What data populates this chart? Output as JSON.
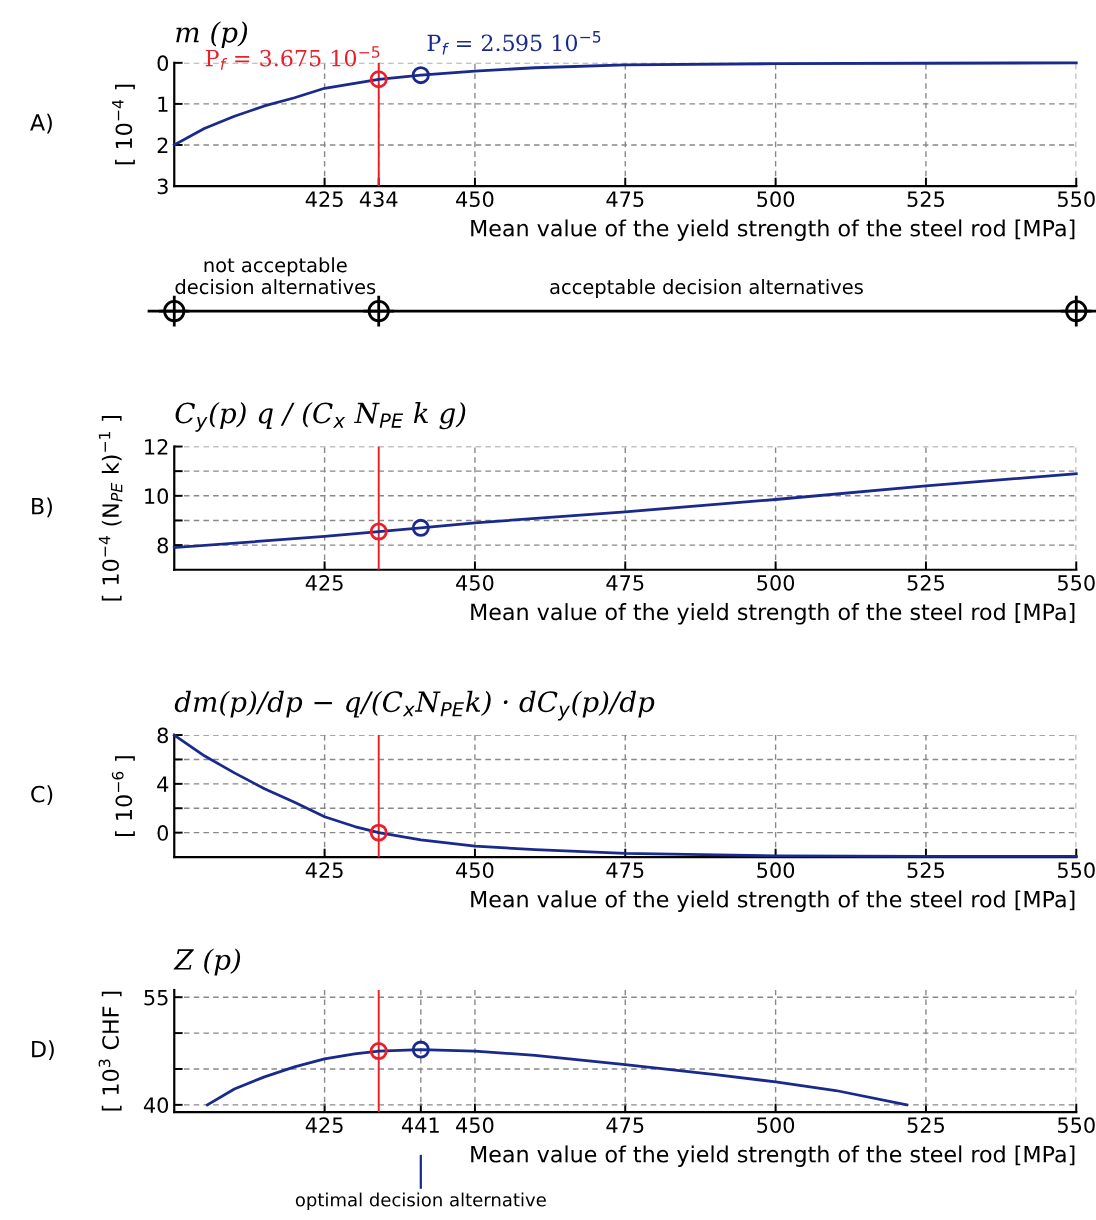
{
  "chart_data": [
    {
      "type": "line",
      "title": "m (p)",
      "ylabel": "[ 10$^{−4}$ ]",
      "xlabel": "Mean value of the yield strength of the steel rod [MPa]",
      "xlim": [
        400,
        550
      ],
      "xticks": [
        425,
        434,
        450,
        475,
        500,
        525,
        550
      ],
      "ylim": [
        3,
        0
      ],
      "yticks": [
        0,
        1,
        2,
        3
      ],
      "grid": true,
      "marker": "none",
      "line_style": "solid",
      "series": [
        {
          "x": [
            400,
            405,
            410,
            415,
            420,
            425,
            430,
            434,
            441,
            450,
            460,
            475,
            500,
            525,
            550
          ],
          "values": [
            2.0,
            1.6,
            1.3,
            1.05,
            0.85,
            0.62,
            0.5,
            0.4,
            0.3,
            0.2,
            0.12,
            0.05,
            0.02,
            0.01,
            0.0
          ],
          "color": "#1a2a8c"
        },
        {
          "type": "scatter",
          "marker": "circle",
          "x": [
            434
          ],
          "values": [
            0.4
          ],
          "color": "#e8202a"
        },
        {
          "type": "scatter",
          "marker": "circle",
          "x": [
            441
          ],
          "values": [
            0.3
          ],
          "color": "#1a2a8c"
        }
      ],
      "ref_lines": [
        {
          "axis": "x",
          "value": 434,
          "color": "#e8202a"
        }
      ],
      "annotations": [
        "A)",
        {
          "text": "P$_{f}$ = 3.675 10$^{−5}$",
          "x": 434,
          "y": 0.4
        },
        {
          "text": "P$_{f}$ = 2.595 10$^{−5}$",
          "x": 441,
          "y": 0.3
        }
      ]
    },
    {
      "type": "other",
      "annotations": [
        "not acceptable\ndecision alternatives",
        "acceptable decision alternatives"
      ]
    },
    {
      "type": "line",
      "title": "C$_{y}$(p) q / (C$_{x}$ N$_{PE}$ k g)",
      "ylabel": "[ 10$^{−4}$ (N$_{PE}$ k)$^{−1}$ ]",
      "xlabel": "Mean value of the yield strength of the steel rod [MPa]",
      "xlim": [
        400,
        550
      ],
      "xticks": [
        425,
        450,
        475,
        500,
        525,
        550
      ],
      "ylim": [
        7,
        12
      ],
      "yticks": [
        8,
        {
          "value": 9,
          "label": null
        },
        10,
        {
          "value": 11,
          "label": null
        },
        12
      ],
      "grid": true,
      "marker": "none",
      "line_style": "solid",
      "series": [
        {
          "x": [
            400,
            425,
            434,
            441,
            450,
            475,
            500,
            525,
            550
          ],
          "values": [
            7.9,
            8.35,
            8.55,
            8.7,
            8.9,
            9.35,
            9.85,
            10.4,
            10.9
          ],
          "color": "#1a2a8c"
        },
        {
          "type": "scatter",
          "marker": "circle",
          "x": [
            434
          ],
          "values": [
            8.55
          ],
          "color": "#e8202a"
        },
        {
          "type": "scatter",
          "marker": "circle",
          "x": [
            441
          ],
          "values": [
            8.7
          ],
          "color": "#1a2a8c"
        }
      ],
      "ref_lines": [
        {
          "axis": "x",
          "value": 434,
          "color": "#e8202a"
        }
      ],
      "annotations": [
        "B)"
      ]
    },
    {
      "type": "line",
      "title": "dm(p)/dp − q/(C$_{x}$N$_{PE}$k) · dC$_{y}$(p)/dp",
      "ylabel": "[ 10$^{−6}$ ]",
      "xlabel": "Mean value of the yield strength of the steel rod [MPa]",
      "xlim": [
        400,
        550
      ],
      "xticks": [
        425,
        450,
        475,
        500,
        525,
        550
      ],
      "ylim": [
        -2,
        8
      ],
      "yticks": [
        0,
        {
          "value": 2,
          "label": null
        },
        4,
        {
          "value": 6,
          "label": null
        },
        8
      ],
      "grid": true,
      "marker": "none",
      "line_style": "solid",
      "series": [
        {
          "x": [
            400,
            405,
            410,
            415,
            420,
            425,
            430,
            434,
            441,
            450,
            460,
            475,
            500,
            525,
            550
          ],
          "values": [
            8,
            6.3,
            4.9,
            3.6,
            2.5,
            1.3,
            0.5,
            0,
            -0.6,
            -1.1,
            -1.4,
            -1.7,
            -1.9,
            -1.95,
            -1.95
          ],
          "color": "#1a2a8c"
        },
        {
          "type": "scatter",
          "marker": "circle",
          "x": [
            434
          ],
          "values": [
            0
          ],
          "color": "#e8202a"
        }
      ],
      "ref_lines": [
        {
          "axis": "x",
          "value": 434,
          "color": "#e8202a"
        }
      ],
      "annotations": [
        "C)"
      ]
    },
    {
      "type": "line",
      "title": "Z (p)",
      "ylabel": "[ 10$^{3}$ CHF ]",
      "xlabel": "Mean value of the yield strength of the steel rod [MPa]",
      "xlim": [
        400,
        550
      ],
      "xticks": [
        425,
        441,
        450,
        475,
        500,
        525,
        550
      ],
      "ylim": [
        39,
        56
      ],
      "yticks": [
        40,
        {
          "value": 45,
          "label": null
        },
        {
          "value": 50,
          "label": null
        },
        55
      ],
      "grid": true,
      "marker": "none",
      "line_style": "solid",
      "series": [
        {
          "x": [
            405.5,
            410,
            415,
            420,
            425,
            430,
            434,
            441,
            450,
            460,
            475,
            490,
            500,
            510,
            521.8
          ],
          "values": [
            40,
            42.2,
            43.9,
            45.3,
            46.4,
            47.1,
            47.5,
            47.7,
            47.5,
            46.9,
            45.6,
            44.2,
            43.2,
            42.0,
            40
          ],
          "color": "#1a2a8c"
        },
        {
          "type": "scatter",
          "marker": "circle",
          "x": [
            434
          ],
          "values": [
            47.5
          ],
          "color": "#e8202a"
        },
        {
          "type": "scatter",
          "marker": "circle",
          "x": [
            441
          ],
          "values": [
            47.7
          ],
          "color": "#1a2a8c"
        }
      ],
      "ref_lines": [
        {
          "axis": "x",
          "value": 434,
          "color": "#e8202a"
        }
      ],
      "annotations": [
        "D)",
        "optimal decision alternative"
      ]
    }
  ]
}
